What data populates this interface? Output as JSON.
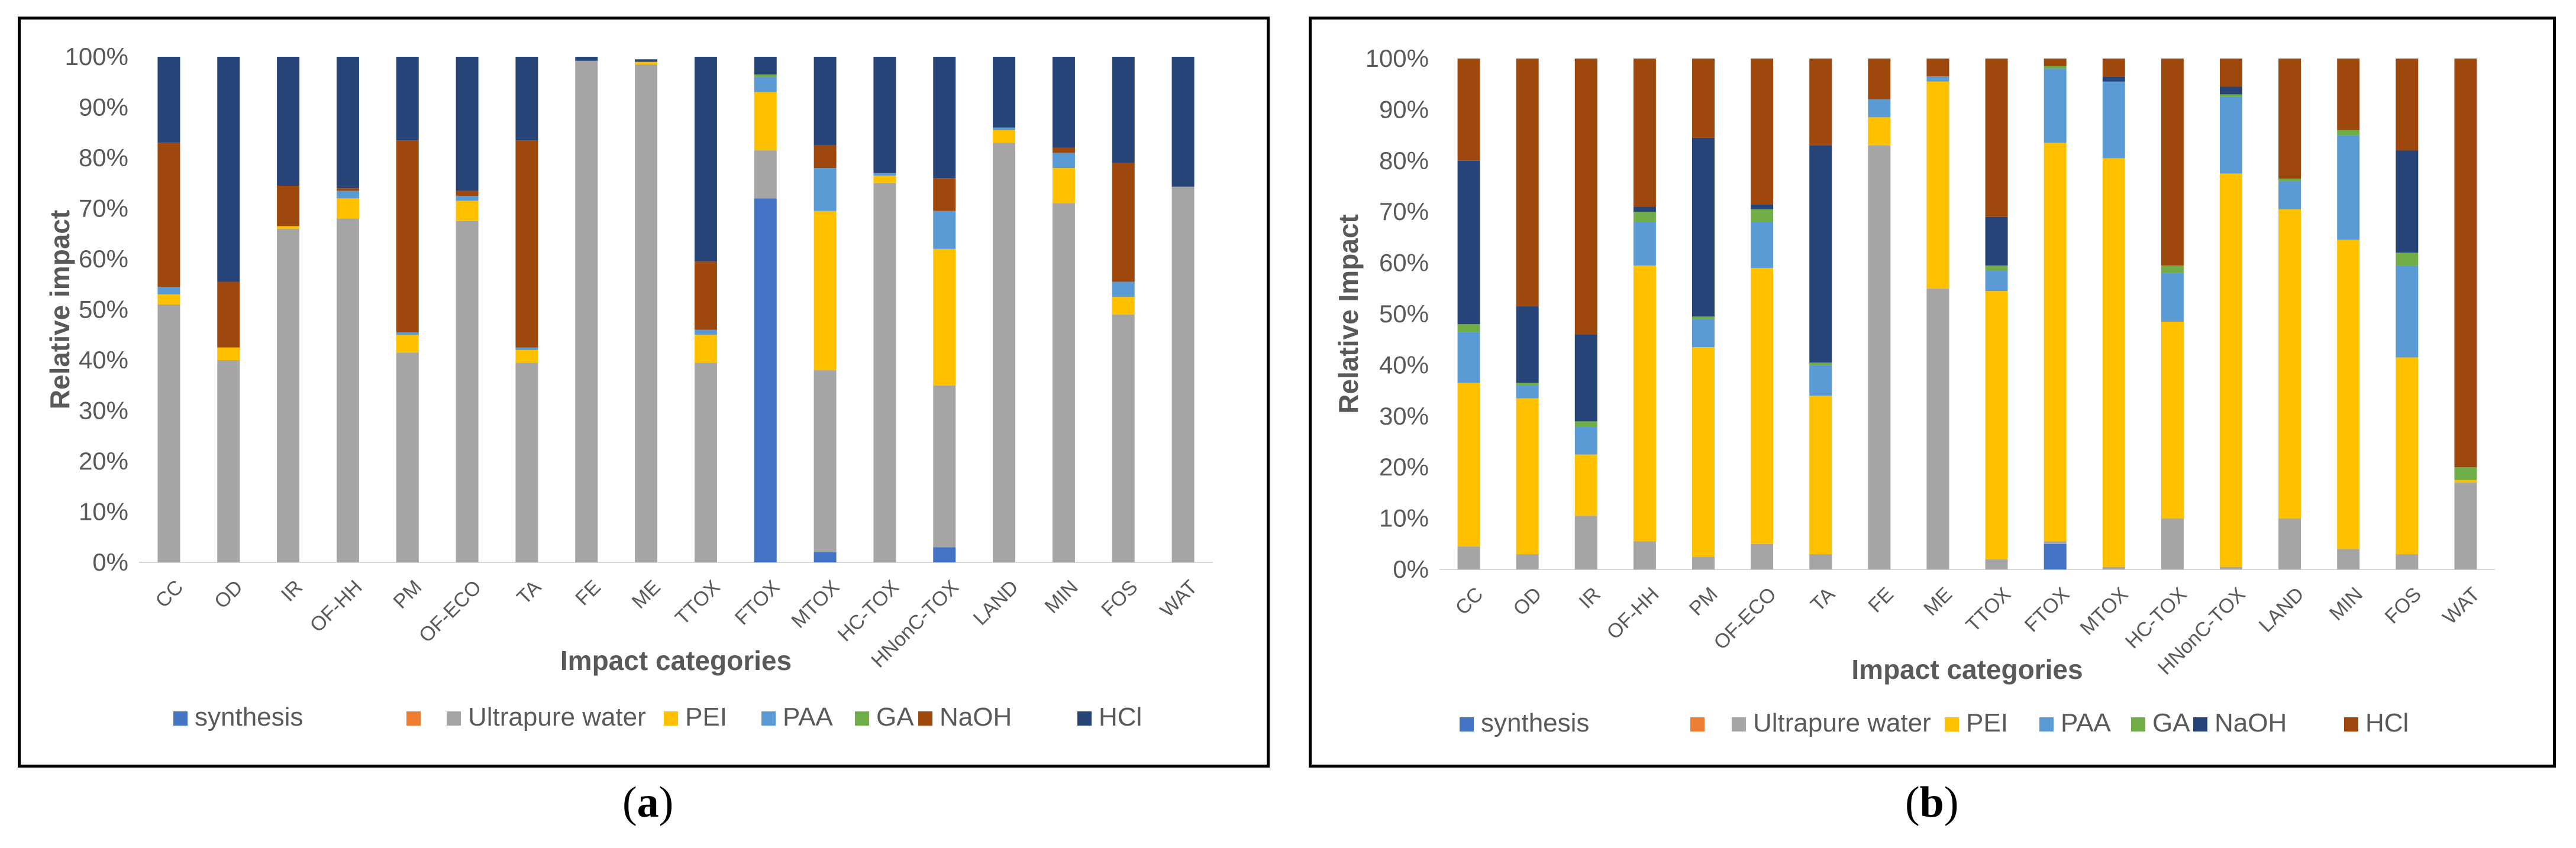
{
  "panel_labels": {
    "a": {
      "open": "(",
      "letter": "a",
      "close": ")"
    },
    "b": {
      "open": "(",
      "letter": "b",
      "close": ")"
    }
  },
  "chart_data": [
    {
      "id": "a",
      "type": "bar",
      "stacked": true,
      "title": "",
      "xlabel": "Impact categories",
      "ylabel": "Relative impact",
      "ylim": [
        0,
        100
      ],
      "yticks": [
        "0%",
        "10%",
        "20%",
        "30%",
        "40%",
        "50%",
        "60%",
        "70%",
        "80%",
        "90%",
        "100%"
      ],
      "legend_position": "bottom",
      "categories": [
        "CC",
        "OD",
        "IR",
        "OF-HH",
        "PM",
        "OF-ECO",
        "TA",
        "FE",
        "ME",
        "TTOX",
        "FTOX",
        "MTOX",
        "HC-TOX",
        "HNonC-TOX",
        "LAND",
        "MIN",
        "FOS",
        "WAT"
      ],
      "series": [
        {
          "name": "synthesis",
          "color": "#4472C4",
          "values": [
            0,
            0,
            0,
            0,
            0,
            0,
            0,
            0,
            0,
            0,
            72,
            2,
            0,
            3,
            0,
            0,
            0,
            0
          ]
        },
        {
          "name": "",
          "color": "#ED7D31",
          "values": [
            0,
            0,
            0,
            0,
            0,
            0,
            0,
            0,
            0,
            0,
            0,
            0,
            0,
            0,
            0,
            0,
            0,
            0
          ]
        },
        {
          "name": "Ultrapure water",
          "color": "#A5A5A5",
          "values": [
            51,
            40,
            66,
            68,
            41.5,
            67.5,
            39.5,
            99.2,
            98.5,
            39.5,
            9.5,
            36,
            75,
            32,
            83,
            71,
            49,
            74.3
          ]
        },
        {
          "name": "PEI",
          "color": "#FFC000",
          "values": [
            2,
            2.5,
            0.5,
            4,
            3.5,
            4,
            2.5,
            0,
            0.5,
            5.5,
            11.5,
            31.5,
            1.5,
            27,
            2.5,
            7,
            3.5,
            0
          ]
        },
        {
          "name": "PAA",
          "color": "#5B9BD5",
          "values": [
            1.5,
            0,
            0,
            1.5,
            0.5,
            1,
            0.5,
            0,
            0,
            1,
            3,
            8.5,
            0.5,
            7.5,
            0.5,
            3,
            3,
            0
          ]
        },
        {
          "name": "GA",
          "color": "#70AD47",
          "values": [
            0,
            0,
            0,
            0,
            0,
            0,
            0,
            0,
            0,
            0,
            0.5,
            0,
            0,
            0,
            0,
            0,
            0,
            0
          ]
        },
        {
          "name": "NaOH",
          "color": "#9E480E",
          "values": [
            28.5,
            13,
            8,
            0.5,
            38,
            1,
            41,
            0,
            0,
            13.5,
            0,
            4.5,
            0,
            6.5,
            0,
            1,
            23.5,
            0
          ]
        },
        {
          "name": "HCl",
          "color": "#264478",
          "values": [
            17,
            44.5,
            25.5,
            26,
            16.5,
            26.5,
            16.5,
            0.8,
            0.5,
            40.5,
            3.5,
            17.5,
            23,
            24,
            14,
            18,
            21,
            25.7
          ]
        }
      ]
    },
    {
      "id": "b",
      "type": "bar",
      "stacked": true,
      "title": "",
      "xlabel": "Impact categories",
      "ylabel": "Relative Impact",
      "ylim": [
        0,
        100
      ],
      "yticks": [
        "0%",
        "10%",
        "20%",
        "30%",
        "40%",
        "50%",
        "60%",
        "70%",
        "80%",
        "90%",
        "100%"
      ],
      "legend_position": "bottom",
      "categories": [
        "CC",
        "OD",
        "IR",
        "OF-HH",
        "PM",
        "OF-ECO",
        "TA",
        "FE",
        "ME",
        "TTOX",
        "FTOX",
        "MTOX",
        "HC-TOX",
        "HNonC-TOX",
        "LAND",
        "MIN",
        "FOS",
        "WAT"
      ],
      "series": [
        {
          "name": "synthesis",
          "color": "#4472C4",
          "values": [
            0,
            0,
            0,
            0,
            0,
            0,
            0,
            0,
            0,
            0,
            5,
            0,
            0,
            0,
            0,
            0,
            0,
            0
          ]
        },
        {
          "name": "",
          "color": "#ED7D31",
          "values": [
            0,
            0,
            0,
            0,
            0,
            0,
            0,
            0,
            0,
            0,
            0,
            0,
            0,
            0,
            0,
            0,
            0,
            0
          ]
        },
        {
          "name": "Ultrapure water",
          "color": "#A5A5A5",
          "values": [
            4.5,
            3,
            10.5,
            5.5,
            2.5,
            5,
            3,
            83,
            55,
            2,
            0.5,
            0.5,
            10,
            0.5,
            10,
            4,
            3,
            17
          ]
        },
        {
          "name": "PEI",
          "color": "#FFC000",
          "values": [
            32,
            30.5,
            12,
            54,
            41,
            54,
            31,
            5.5,
            40.5,
            52.5,
            78,
            80,
            38.5,
            77,
            60.5,
            60.5,
            38.5,
            0.5
          ]
        },
        {
          "name": "PAA",
          "color": "#5B9BD5",
          "values": [
            10,
            2.5,
            5.5,
            8.5,
            5.5,
            9,
            6,
            3.5,
            1,
            4,
            14.5,
            15,
            9.5,
            15,
            5.5,
            20.5,
            18,
            0
          ]
        },
        {
          "name": "GA",
          "color": "#70AD47",
          "values": [
            1.5,
            0.5,
            1,
            2,
            0.5,
            2.5,
            0.5,
            0,
            0,
            1,
            0.5,
            0,
            1.5,
            0.5,
            0.5,
            1,
            2.5,
            2.5
          ]
        },
        {
          "name": "NaOH",
          "color": "#264478",
          "values": [
            32,
            15,
            17,
            1,
            35,
            1,
            42.5,
            0,
            0,
            9.5,
            0,
            1,
            0,
            1.5,
            0,
            0,
            20,
            0
          ]
        },
        {
          "name": "HCl",
          "color": "#9E480E",
          "values": [
            20,
            48.5,
            54,
            29,
            15.5,
            28.5,
            17,
            8,
            3.5,
            31,
            1.5,
            3.5,
            40.5,
            5.5,
            23.5,
            14,
            18,
            80
          ]
        }
      ]
    }
  ]
}
